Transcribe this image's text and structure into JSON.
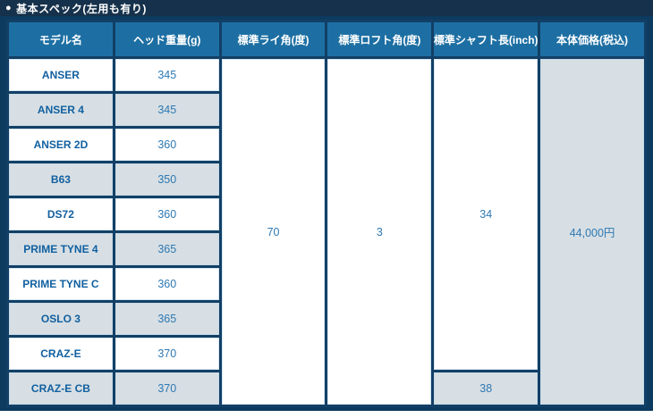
{
  "header": {
    "bullet": "●",
    "title": "基本スペック(左用も有り)"
  },
  "colors": {
    "topbar_navy": "#16314b",
    "panel_navy": "#0d3a5f",
    "grid_navy": "#123f66",
    "header_blue": "#1d6fa3",
    "row_alt_gray": "#d7dfe4",
    "text_blue": "#2e78b2",
    "model_text_blue": "#1160a0"
  },
  "table": {
    "headers": [
      "モデル名",
      "ヘッド重量(g)",
      "標準ライ角(度)",
      "標準ロフト角(度)",
      "標準シャフト長(inch)",
      "本体価格(税込)"
    ],
    "rows": [
      {
        "model": "ANSER",
        "weight": "345"
      },
      {
        "model": "ANSER 4",
        "weight": "345"
      },
      {
        "model": "ANSER 2D",
        "weight": "360"
      },
      {
        "model": "B63",
        "weight": "350"
      },
      {
        "model": "DS72",
        "weight": "360"
      },
      {
        "model": "PRIME TYNE 4",
        "weight": "365"
      },
      {
        "model": "PRIME TYNE C",
        "weight": "360"
      },
      {
        "model": "OSLO 3",
        "weight": "365"
      },
      {
        "model": "CRAZ-E",
        "weight": "370"
      },
      {
        "model": "CRAZ-E CB",
        "weight": "370"
      }
    ],
    "lie_angle": "70",
    "loft_angle": "3",
    "shaft_length_main": "34",
    "shaft_length_last": "38",
    "price": "44,000円"
  }
}
